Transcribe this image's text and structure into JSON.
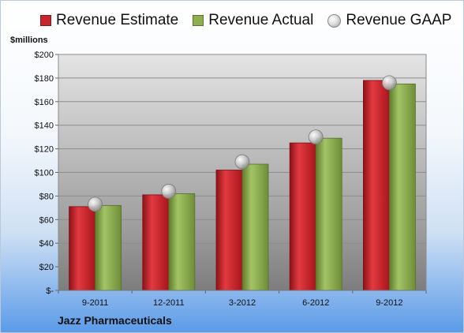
{
  "company": "Jazz Pharmaceuticals",
  "unit_label": "$millions",
  "legend": [
    {
      "label": "Revenue Estimate",
      "color": "#c7262d",
      "shape": "square"
    },
    {
      "label": "Revenue Actual",
      "color": "#8fae4f",
      "shape": "square"
    },
    {
      "label": "Revenue GAAP",
      "color": "#cccccc",
      "shape": "circle"
    }
  ],
  "chart_data": {
    "type": "bar",
    "categories": [
      "9-2011",
      "12-2011",
      "3-2012",
      "6-2012",
      "9-2012"
    ],
    "series": [
      {
        "name": "Revenue Estimate",
        "values": [
          71,
          81,
          102,
          125,
          178
        ],
        "color": "#c7262d"
      },
      {
        "name": "Revenue Actual",
        "values": [
          72,
          82,
          107,
          129,
          175
        ],
        "color": "#8fae4f"
      },
      {
        "name": "Revenue GAAP",
        "values": [
          73,
          84,
          109,
          130,
          176
        ],
        "color": "#cccccc",
        "marker": "circle"
      }
    ],
    "ylim": [
      0,
      200
    ],
    "yticks": [
      "$-",
      "$20",
      "$40",
      "$60",
      "$80",
      "$100",
      "$120",
      "$140",
      "$160",
      "$180",
      "$200"
    ],
    "ylabel": "$millions",
    "grid": true,
    "legend_position": "top"
  }
}
